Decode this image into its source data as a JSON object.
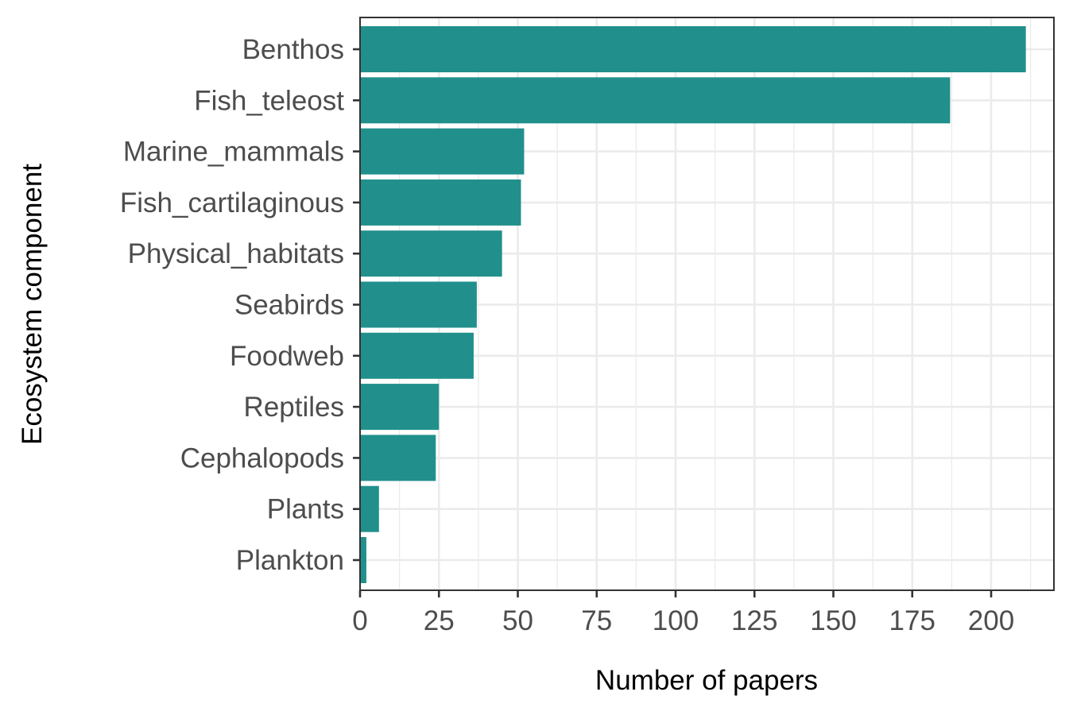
{
  "chart_data": {
    "type": "bar",
    "orientation": "horizontal",
    "categories": [
      "Benthos",
      "Fish_teleost",
      "Marine_mammals",
      "Fish_cartilaginous",
      "Physical_habitats",
      "Seabirds",
      "Foodweb",
      "Reptiles",
      "Cephalopods",
      "Plants",
      "Plankton"
    ],
    "values": [
      211,
      187,
      52,
      51,
      45,
      37,
      36,
      25,
      24,
      6,
      2
    ],
    "xlabel": "Number of papers",
    "ylabel": "Ecosystem component",
    "x_ticks": [
      "0",
      "25",
      "50",
      "75",
      "100",
      "125",
      "150",
      "175",
      "200"
    ],
    "xlim": [
      0,
      220
    ],
    "grid": true,
    "bar_color": "#21908C",
    "panel_border_color": "#333333",
    "grid_color": "#EBEBEB"
  }
}
